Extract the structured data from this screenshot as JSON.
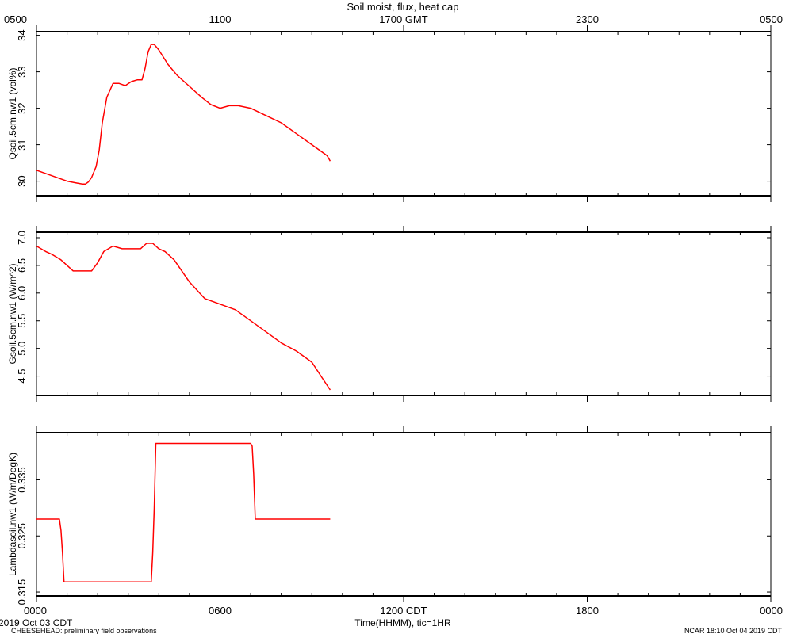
{
  "figure": {
    "title": "Soil moist, flux, heat cap",
    "top_time_labels": [
      "0500",
      "1100",
      "1700 GMT",
      "2300",
      "0500"
    ],
    "bottom_time_labels": [
      "0000",
      "0600",
      "1200 CDT",
      "1800",
      "0000"
    ],
    "xlabel": "Time(HHMM), tic=1HR",
    "footer_left_date": "2019 Oct 03 CDT",
    "footer_left_project": "CHEESEHEAD: preliminary field observations",
    "footer_right": "NCAR 18:10 Oct 04 2019 CDT",
    "line_color": "#ff0000",
    "axis_color": "#000000"
  },
  "chart_data": [
    {
      "type": "line",
      "ylabel": "Qsoil.5cm.nw1 (vol%)",
      "x_unit": "hours since 0000 CDT",
      "xlim": [
        0,
        24
      ],
      "ylim": [
        29.6,
        34.1
      ],
      "yticks": [
        30,
        31,
        32,
        33,
        34
      ],
      "ytick_labels": [
        "30",
        "31",
        "32",
        "33",
        "34"
      ],
      "series": [
        {
          "x": [
            0,
            0.5,
            1.0,
            1.3,
            1.5,
            1.6,
            1.7,
            1.8,
            1.95,
            2.05,
            2.15,
            2.3,
            2.5,
            2.7,
            2.9,
            3.1,
            3.3,
            3.45,
            3.55,
            3.65,
            3.75,
            3.85,
            4.0,
            4.3,
            4.6,
            5.0,
            5.4,
            5.7,
            6.0,
            6.3,
            6.6,
            7.0,
            7.5,
            8.0,
            8.5,
            9.0,
            9.5,
            9.6
          ],
          "y": [
            30.3,
            30.15,
            30.0,
            29.95,
            29.92,
            29.92,
            29.98,
            30.1,
            30.4,
            30.85,
            31.6,
            32.3,
            32.68,
            32.68,
            32.62,
            32.73,
            32.78,
            32.78,
            33.1,
            33.55,
            33.75,
            33.75,
            33.6,
            33.2,
            32.9,
            32.6,
            32.3,
            32.1,
            32.0,
            32.07,
            32.07,
            32.0,
            31.8,
            31.6,
            31.3,
            31.0,
            30.7,
            30.55
          ]
        }
      ]
    },
    {
      "type": "line",
      "ylabel": "Gsoil.5cm.nw1 (W/m^2)",
      "x_unit": "hours since 0000 CDT",
      "xlim": [
        0,
        24
      ],
      "ylim": [
        4.15,
        7.1
      ],
      "yticks": [
        4.5,
        5.0,
        5.5,
        6.0,
        6.5,
        7.0
      ],
      "ytick_labels": [
        "4.5",
        "5.0",
        "5.5",
        "6.0",
        "6.5",
        "7.0"
      ],
      "series": [
        {
          "x": [
            0,
            0.3,
            0.5,
            0.8,
            1.0,
            1.2,
            1.5,
            1.8,
            2.0,
            2.2,
            2.5,
            2.8,
            3.1,
            3.4,
            3.6,
            3.8,
            4.0,
            4.2,
            4.5,
            5.0,
            5.5,
            6.0,
            6.5,
            7.0,
            7.5,
            8.0,
            8.5,
            9.0,
            9.3,
            9.6
          ],
          "y": [
            6.85,
            6.75,
            6.7,
            6.6,
            6.5,
            6.4,
            6.4,
            6.4,
            6.55,
            6.75,
            6.85,
            6.8,
            6.8,
            6.8,
            6.9,
            6.9,
            6.8,
            6.75,
            6.6,
            6.2,
            5.9,
            5.8,
            5.7,
            5.5,
            5.3,
            5.1,
            4.95,
            4.75,
            4.5,
            4.25
          ]
        }
      ]
    },
    {
      "type": "line",
      "ylabel": "Lambdasoil.nw1 (W/m/DegK)",
      "x_unit": "hours since 0000 CDT",
      "xlim": [
        0,
        24
      ],
      "ylim": [
        0.3143,
        0.3434
      ],
      "yticks": [
        0.315,
        0.325,
        0.335
      ],
      "ytick_labels": [
        "0.315",
        "0.325",
        "0.335"
      ],
      "series": [
        {
          "x": [
            0,
            0.75,
            0.8,
            0.85,
            0.9,
            0.95,
            3.75,
            3.8,
            3.85,
            3.9,
            7.0,
            7.05,
            7.1,
            7.15,
            9.6
          ],
          "y": [
            0.328,
            0.328,
            0.326,
            0.322,
            0.3168,
            0.3168,
            0.3168,
            0.322,
            0.33,
            0.3415,
            0.3415,
            0.341,
            0.336,
            0.328,
            0.328
          ]
        }
      ]
    }
  ]
}
